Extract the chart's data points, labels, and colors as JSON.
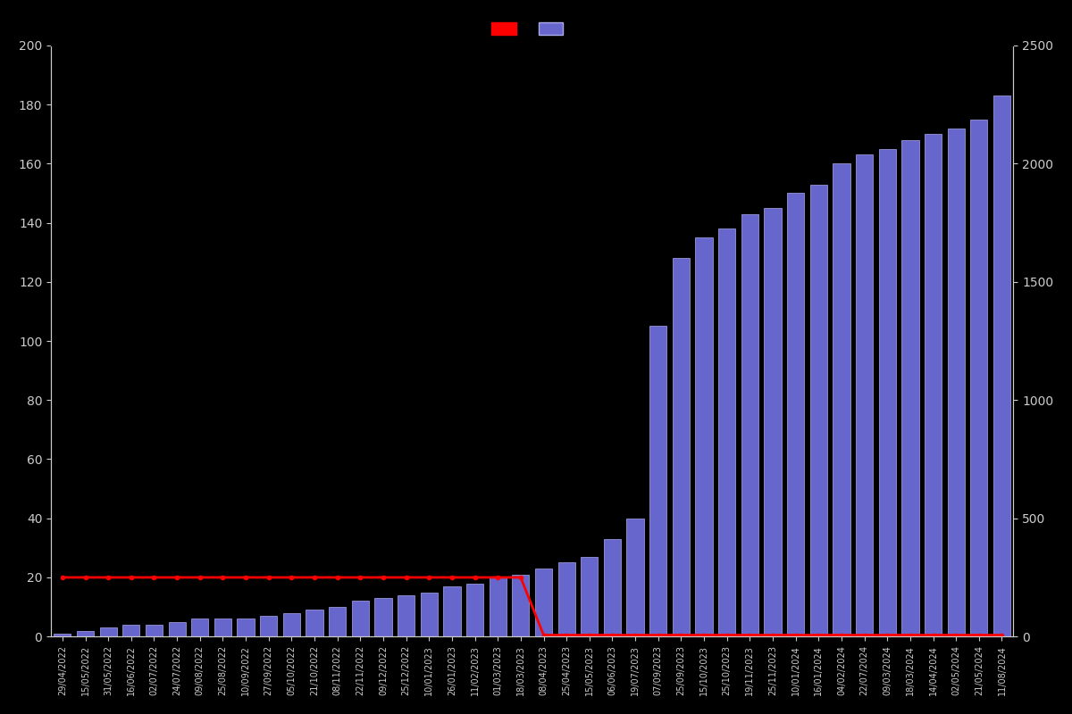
{
  "background_color": "#000000",
  "text_color": "#cccccc",
  "bar_color": "#6666cc",
  "bar_edgecolor": "#aaaaee",
  "line_color": "#ff0000",
  "categories": [
    "29/04/2022",
    "15/05/2022",
    "31/05/2022",
    "16/06/2022",
    "02/07/2022",
    "24/07/2022",
    "09/08/2022",
    "25/08/2022",
    "10/09/2022",
    "27/09/2022",
    "05/10/2022",
    "21/10/2022",
    "08/11/2022",
    "22/11/2022",
    "09/12/2022",
    "25/12/2022",
    "10/01/2023",
    "26/01/2023",
    "11/02/2023",
    "01/03/2023",
    "18/03/2023",
    "08/04/2023",
    "25/04/2023",
    "15/05/2023",
    "06/06/2023",
    "19/07/2023",
    "07/09/2023",
    "25/09/2023",
    "15/10/2023",
    "25/10/2023",
    "19/11/2023",
    "25/11/2023",
    "10/01/2024",
    "16/01/2024",
    "04/02/2024",
    "22/07/2024",
    "09/03/2024",
    "18/03/2024",
    "14/04/2024",
    "02/05/2024",
    "21/05/2024",
    "11/08/2024"
  ],
  "bar_values": [
    1,
    2,
    3,
    4,
    4,
    5,
    6,
    6,
    6,
    7,
    8,
    9,
    10,
    12,
    13,
    14,
    15,
    17,
    18,
    20,
    21,
    23,
    25,
    27,
    33,
    40,
    105,
    128,
    135,
    138,
    143,
    145,
    150,
    153,
    160,
    163,
    165,
    168,
    170,
    172,
    175,
    183
  ],
  "line_values": [
    20,
    20,
    20,
    20,
    20,
    20,
    20,
    20,
    20,
    20,
    20,
    20,
    20,
    20,
    20,
    20,
    20,
    20,
    20,
    20,
    20,
    0.5,
    0.5,
    0.5,
    0.5,
    0.5,
    0.5,
    0.5,
    0.5,
    0.5,
    0.5,
    0.5,
    0.5,
    0.5,
    0.5,
    0.5,
    0.5,
    0.5,
    0.5,
    0.5,
    0.5,
    0.5
  ],
  "ylim_left": [
    0,
    200
  ],
  "ylim_right": [
    0,
    2500
  ],
  "yticks_left": [
    0,
    20,
    40,
    60,
    80,
    100,
    120,
    140,
    160,
    180,
    200
  ],
  "yticks_right": [
    0,
    500,
    1000,
    1500,
    2000,
    2500
  ],
  "figsize": [
    12,
    8
  ],
  "dpi": 100
}
